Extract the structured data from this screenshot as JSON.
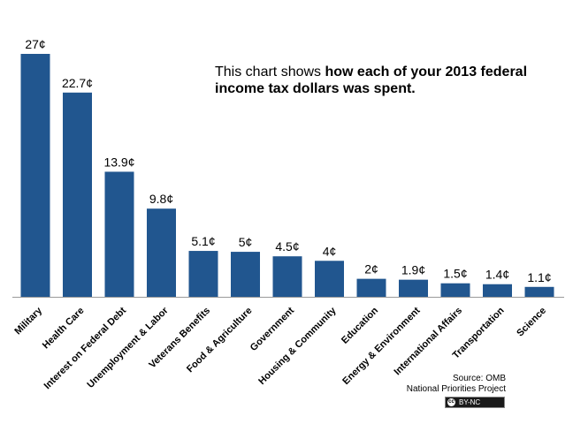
{
  "chart_data": {
    "type": "bar",
    "categories": [
      "Military",
      "Health Care",
      "Interest on Federal Debt",
      "Unemployment & Labor",
      "Veterans Benefits",
      "Food & Agriculture",
      "Government",
      "Housing & Community",
      "Education",
      "Energy & Environment",
      "International Affairs",
      "Transportation",
      "Science"
    ],
    "values": [
      27,
      22.7,
      13.9,
      9.8,
      5.1,
      5,
      4.5,
      4,
      2,
      1.9,
      1.5,
      1.4,
      1.1
    ],
    "data_labels": [
      "27¢",
      "22.7¢",
      "13.9¢",
      "9.8¢",
      "5.1¢",
      "5¢",
      "4.5¢",
      "4¢",
      "2¢",
      "1.9¢",
      "1.5¢",
      "1.4¢",
      "1.1¢"
    ],
    "ylim": [
      0,
      27
    ],
    "grid": false,
    "bar_color": "#21568f"
  },
  "note": {
    "prefix": "This chart shows ",
    "bold": "how each of your 2013 federal income tax dollars was spent."
  },
  "source": {
    "line1": "Source: OMB",
    "line2": "National Priorities Project"
  },
  "license": {
    "icon": "creative-commons-icon",
    "glyph": "cc",
    "label": "BY-NC"
  }
}
